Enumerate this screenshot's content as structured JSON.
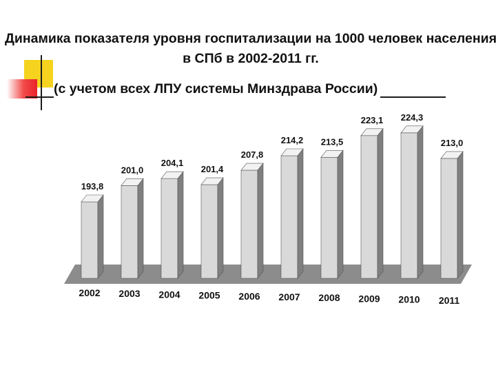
{
  "title": "Динамика показателя уровня госпитализации на 1000 человек населения в СПб в 2002-2011 гг.",
  "subtitle": "(с учетом всех ЛПУ системы Минздрава России)",
  "colors": {
    "accent_yellow": "#f5d31e",
    "accent_red": "#e8232a",
    "bar_front": "#d9d9d9",
    "bar_side": "#7f7f7f",
    "bar_top": "#f2f2f2",
    "floor": "#8c8c8c"
  },
  "chart_data": {
    "type": "bar",
    "categories": [
      "2002",
      "2003",
      "2004",
      "2005",
      "2006",
      "2007",
      "2008",
      "2009",
      "2010",
      "2011"
    ],
    "values": [
      193.8,
      201.0,
      204.1,
      201.4,
      207.8,
      214.2,
      213.5,
      223.1,
      224.3,
      213.0
    ],
    "value_labels": [
      "193,8",
      "201,0",
      "204,1",
      "201,4",
      "207,8",
      "214,2",
      "213,5",
      "223,1",
      "224,3",
      "213,0"
    ],
    "title": "",
    "xlabel": "",
    "ylabel": "",
    "ylim": [
      160,
      230
    ],
    "grid": false,
    "legend": "none",
    "style": "3d-column"
  }
}
